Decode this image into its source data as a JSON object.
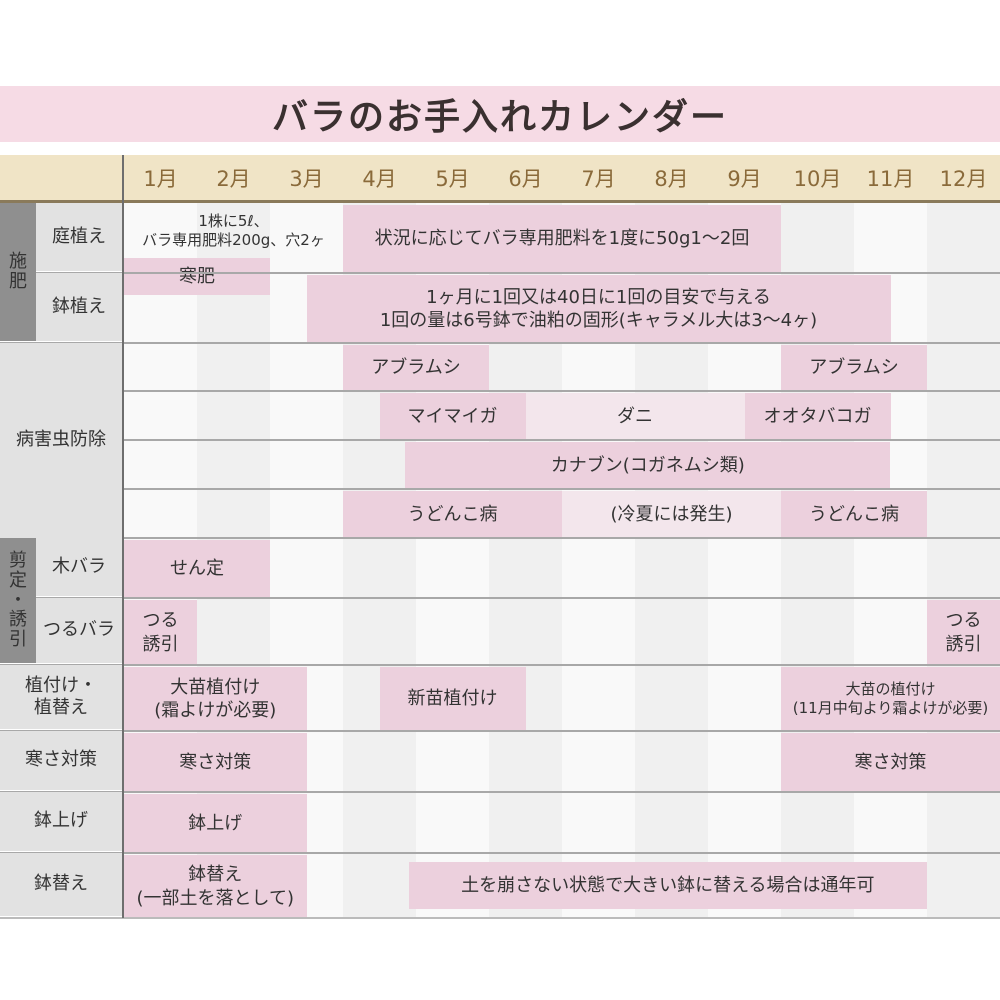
{
  "title": "バラのお手入れカレンダー",
  "months": [
    "1月",
    "2月",
    "3月",
    "4月",
    "5月",
    "6月",
    "7月",
    "8月",
    "9月",
    "10月",
    "11月",
    "12月"
  ],
  "colors": {
    "bar": "#ecd0dd",
    "bar_light": "#f3e6ec",
    "title_bg": "#f6dbe5",
    "header_bg": "#f0e4c6"
  },
  "groups": [
    {
      "label": "施\n肥",
      "rows": [
        0,
        1
      ]
    },
    {
      "label": "剪\n定\n・\n誘\n引",
      "rows": [
        6,
        7
      ]
    }
  ],
  "rows": [
    {
      "label": "庭植え",
      "bars": [
        {
          "text": "1株に5ℓ、\nバラ専用肥料200g、穴2ヶ",
          "from": 1,
          "to": 4,
          "style": "none",
          "part": "top"
        },
        {
          "text": "状況に応じてバラ専用肥料を1度に50g1〜2回",
          "from": 4,
          "to": 10,
          "style": "bar"
        },
        {
          "text": "寒肥",
          "from": 1,
          "to": 3,
          "style": "bar",
          "part": "overlap"
        }
      ]
    },
    {
      "label": "鉢植え",
      "bars": [
        {
          "text": "1ヶ月に1回又は40日に1回の目安で与える\n1回の量は6号鉢で油粕の固形(キャラメル大は3〜4ヶ)",
          "from": 3.5,
          "to": 11.5,
          "style": "bar"
        }
      ]
    },
    {
      "label": "病害虫防除",
      "bars": [
        {
          "text": "アブラムシ",
          "from": 4,
          "to": 6,
          "style": "bar"
        },
        {
          "text": "アブラムシ",
          "from": 10,
          "to": 12,
          "style": "bar"
        }
      ]
    },
    {
      "label": "",
      "bars": [
        {
          "text": "マイマイガ",
          "from": 4.5,
          "to": 6.5,
          "style": "bar"
        },
        {
          "text": "ダニ",
          "from": 6.5,
          "to": 9.5,
          "style": "light"
        },
        {
          "text": "オオタバコガ",
          "from": 9.5,
          "to": 11.5,
          "style": "bar"
        }
      ]
    },
    {
      "label": "",
      "bars": [
        {
          "text": "カナブン(コガネムシ類)",
          "from": 4.85,
          "to": 11.5,
          "style": "bar"
        }
      ]
    },
    {
      "label": "",
      "bars": [
        {
          "text": "うどんこ病",
          "from": 4,
          "to": 7,
          "style": "bar"
        },
        {
          "text": "(冷夏には発生)",
          "from": 7,
          "to": 10,
          "style": "light"
        },
        {
          "text": "うどんこ病",
          "from": 10,
          "to": 12,
          "style": "bar"
        }
      ]
    },
    {
      "label": "木バラ",
      "bars": [
        {
          "text": "せん定",
          "from": 1,
          "to": 3,
          "style": "bar"
        }
      ]
    },
    {
      "label": "つるバラ",
      "bars": [
        {
          "text": "つる\n誘引",
          "from": 1,
          "to": 2,
          "style": "bar"
        },
        {
          "text": "つる\n誘引",
          "from": 12,
          "to": 13,
          "style": "bar"
        }
      ]
    },
    {
      "label": "植付け・\n植替え",
      "bars": [
        {
          "text": "大苗植付け\n(霜よけが必要)",
          "from": 1,
          "to": 3.5,
          "style": "bar"
        },
        {
          "text": "新苗植付け",
          "from": 4.5,
          "to": 6.5,
          "style": "bar"
        },
        {
          "text": "大苗の植付け\n(11月中旬より霜よけが必要)",
          "from": 10,
          "to": 13,
          "style": "bar",
          "small": true
        }
      ]
    },
    {
      "label": "寒さ対策",
      "bars": [
        {
          "text": "寒さ対策",
          "from": 1,
          "to": 3.5,
          "style": "bar"
        },
        {
          "text": "寒さ対策",
          "from": 10,
          "to": 13,
          "style": "bar"
        }
      ]
    },
    {
      "label": "鉢上げ",
      "bars": [
        {
          "text": "鉢上げ",
          "from": 1,
          "to": 3.5,
          "style": "bar"
        }
      ]
    },
    {
      "label": "鉢替え",
      "bars": [
        {
          "text": "鉢替え\n(一部土を落として)",
          "from": 1,
          "to": 3.5,
          "style": "bar"
        },
        {
          "text": "土を崩さない状態で大きい鉢に替える場合は通年可",
          "from": 4.9,
          "to": 12,
          "style": "bar",
          "part": "inset"
        }
      ]
    }
  ]
}
